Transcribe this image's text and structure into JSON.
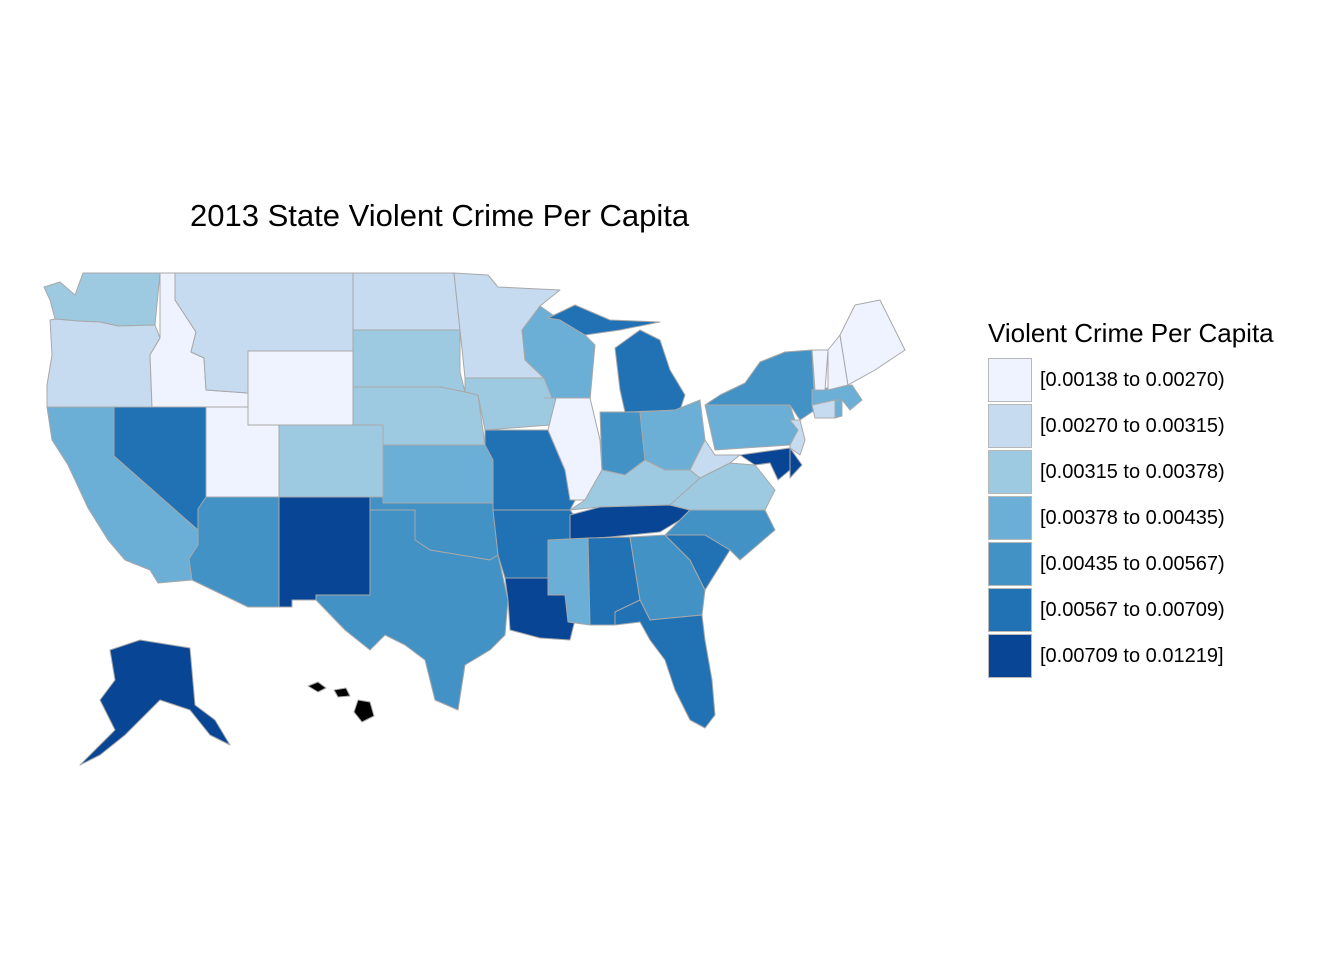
{
  "title": "2013 State Violent Crime Per Capita",
  "legend": {
    "title": "Violent Crime Per Capita",
    "classes": [
      {
        "label": "[0.00138 to 0.00270)",
        "color": "#eff3ff"
      },
      {
        "label": "[0.00270 to 0.00315)",
        "color": "#c6dbef"
      },
      {
        "label": "[0.00315 to 0.00378)",
        "color": "#9ecae1"
      },
      {
        "label": "[0.00378 to 0.00435)",
        "color": "#6baed6"
      },
      {
        "label": "[0.00435 to 0.00567)",
        "color": "#4292c6"
      },
      {
        "label": "[0.00567 to 0.00709)",
        "color": "#2171b5"
      },
      {
        "label": "[0.00709 to 0.01219]",
        "color": "#084594"
      }
    ]
  },
  "colors": {
    "border": "#a8a8a8",
    "missing": "#000000",
    "background": "#ffffff"
  },
  "states": [
    {
      "id": "WA",
      "class": 2
    },
    {
      "id": "OR",
      "class": 1
    },
    {
      "id": "CA",
      "class": 3
    },
    {
      "id": "ID",
      "class": 0
    },
    {
      "id": "NV",
      "class": 5
    },
    {
      "id": "UT",
      "class": 0
    },
    {
      "id": "AZ",
      "class": 4
    },
    {
      "id": "MT",
      "class": 1
    },
    {
      "id": "WY",
      "class": 0
    },
    {
      "id": "CO",
      "class": 2
    },
    {
      "id": "NM",
      "class": 6
    },
    {
      "id": "ND",
      "class": 1
    },
    {
      "id": "SD",
      "class": 2
    },
    {
      "id": "NE",
      "class": 2
    },
    {
      "id": "KS",
      "class": 3
    },
    {
      "id": "OK",
      "class": 4
    },
    {
      "id": "TX",
      "class": 4
    },
    {
      "id": "MN",
      "class": 1
    },
    {
      "id": "IA",
      "class": 2
    },
    {
      "id": "MO",
      "class": 5
    },
    {
      "id": "AR",
      "class": 5
    },
    {
      "id": "LA",
      "class": 6
    },
    {
      "id": "WI",
      "class": 3
    },
    {
      "id": "IL",
      "class": 0
    },
    {
      "id": "MI",
      "class": 5
    },
    {
      "id": "IN",
      "class": 4
    },
    {
      "id": "OH",
      "class": 3
    },
    {
      "id": "KY",
      "class": 2
    },
    {
      "id": "TN",
      "class": 6
    },
    {
      "id": "MS",
      "class": 3
    },
    {
      "id": "AL",
      "class": 5
    },
    {
      "id": "GA",
      "class": 4
    },
    {
      "id": "FL",
      "class": 5
    },
    {
      "id": "SC",
      "class": 5
    },
    {
      "id": "NC",
      "class": 4
    },
    {
      "id": "VA",
      "class": 2
    },
    {
      "id": "WV",
      "class": 1
    },
    {
      "id": "PA",
      "class": 3
    },
    {
      "id": "NY",
      "class": 4
    },
    {
      "id": "MD",
      "class": 6
    },
    {
      "id": "DE",
      "class": 6
    },
    {
      "id": "NJ",
      "class": 1
    },
    {
      "id": "CT",
      "class": 1
    },
    {
      "id": "RI",
      "class": 3
    },
    {
      "id": "MA",
      "class": 3
    },
    {
      "id": "VT",
      "class": 0
    },
    {
      "id": "NH",
      "class": 0
    },
    {
      "id": "ME",
      "class": 0
    },
    {
      "id": "AK",
      "class": 6
    },
    {
      "id": "HI",
      "class": null
    }
  ]
}
